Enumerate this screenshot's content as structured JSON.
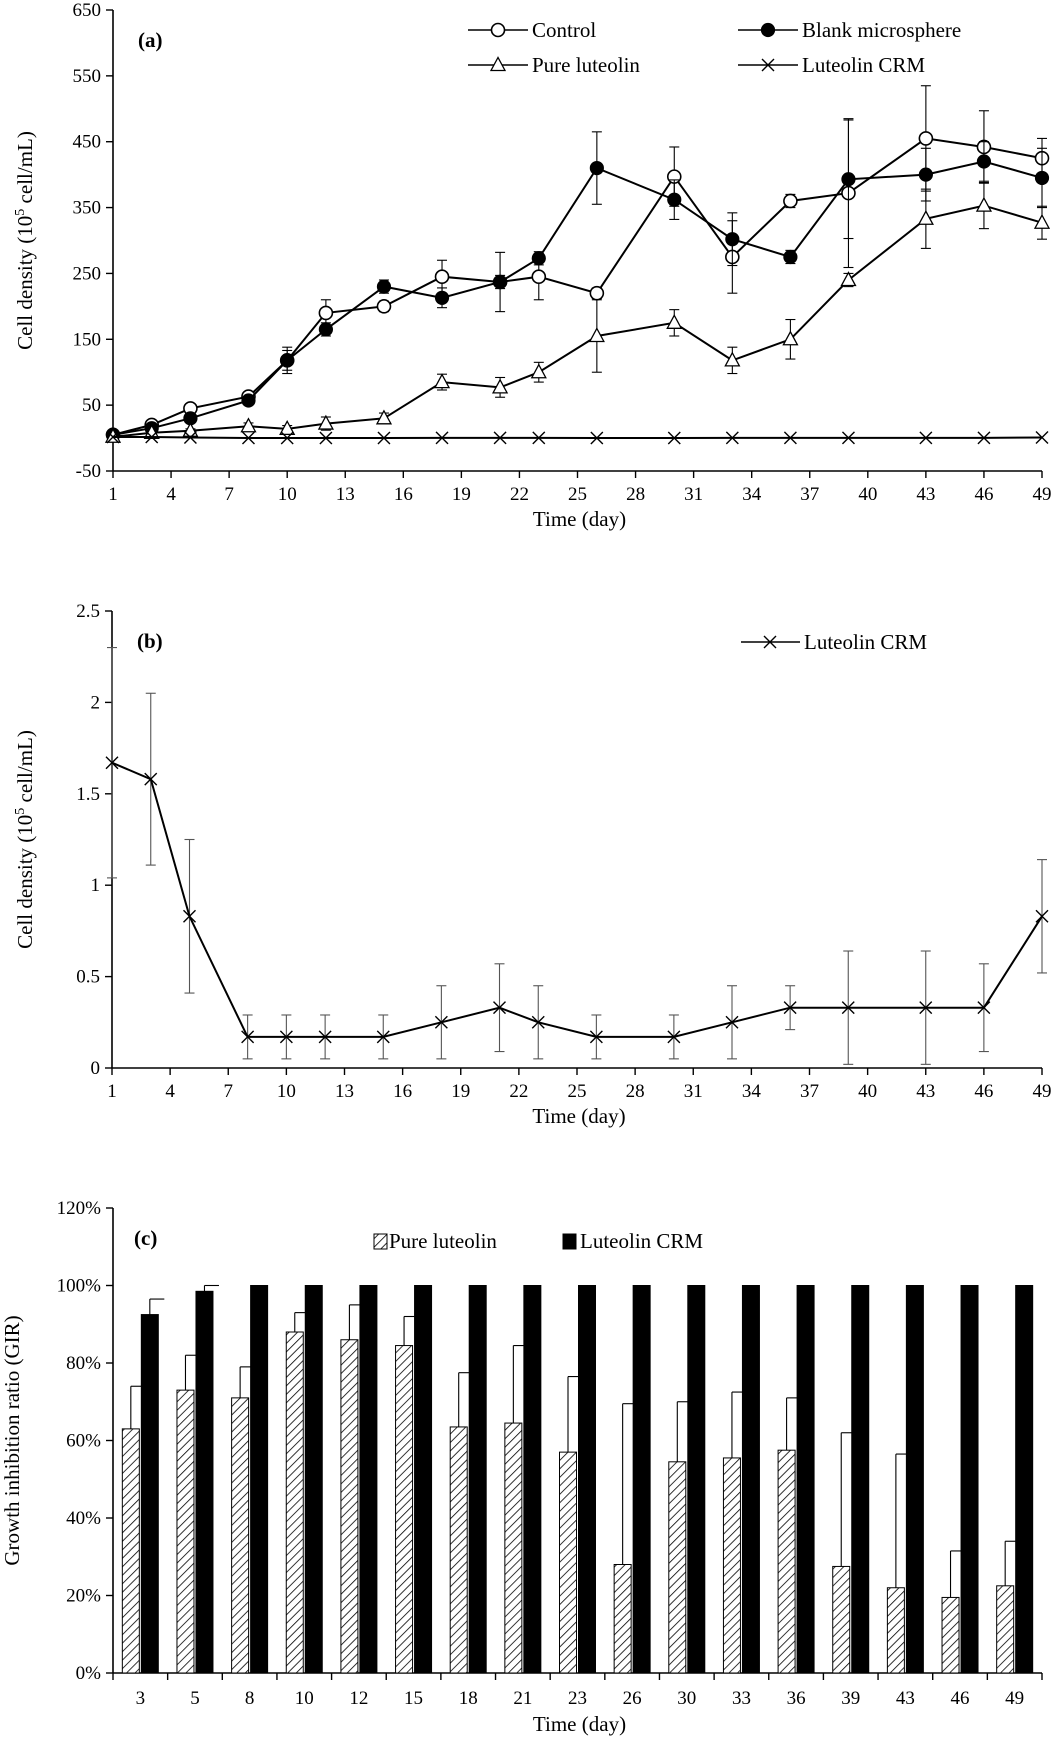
{
  "figure": {
    "panels": [
      {
        "letter": "(a)"
      },
      {
        "letter": "(b)"
      },
      {
        "letter": "(c)"
      }
    ]
  },
  "chart_data": [
    {
      "panel": "(a)",
      "type": "line",
      "xlabel": "Time (day)",
      "ylabel": "Cell density (10",
      "ylabel_sup": "5",
      "ylabel_rest": " cell/mL)",
      "ylim": [
        -50,
        650
      ],
      "yticks": [
        -50,
        50,
        150,
        250,
        350,
        450,
        550,
        650
      ],
      "xlim": [
        1,
        49
      ],
      "xticks": [
        1,
        4,
        7,
        10,
        13,
        16,
        19,
        22,
        25,
        28,
        31,
        34,
        37,
        40,
        43,
        46,
        49
      ],
      "grid": false,
      "legend_position": "top-right",
      "series": [
        {
          "name": "Control",
          "marker": "open-circle",
          "x": [
            1,
            3,
            5,
            8,
            10,
            12,
            15,
            18,
            21,
            23,
            26,
            30,
            33,
            36,
            39,
            43,
            46,
            49
          ],
          "y": [
            5,
            20,
            45,
            63,
            118,
            190,
            200,
            245,
            237,
            245,
            220,
            397,
            275,
            360,
            372,
            455,
            442,
            425
          ],
          "err": [
            3,
            5,
            7,
            6,
            20,
            20,
            8,
            25,
            45,
            35,
            8,
            45,
            55,
            10,
            113,
            80,
            55,
            30
          ]
        },
        {
          "name": "Blank microsphere",
          "marker": "filled-circle",
          "x": [
            1,
            3,
            5,
            8,
            10,
            12,
            15,
            18,
            21,
            23,
            26,
            30,
            33,
            36,
            39,
            43,
            46,
            49
          ],
          "y": [
            5,
            15,
            30,
            57,
            118,
            165,
            230,
            213,
            237,
            273,
            410,
            362,
            302,
            275,
            393,
            400,
            420,
            395
          ],
          "err": [
            2,
            3,
            5,
            5,
            15,
            10,
            10,
            15,
            10,
            10,
            55,
            30,
            40,
            10,
            90,
            40,
            30,
            45
          ]
        },
        {
          "name": "Pure luteolin",
          "marker": "open-triangle",
          "x": [
            1,
            3,
            5,
            8,
            10,
            12,
            15,
            18,
            21,
            23,
            26,
            30,
            33,
            36,
            39,
            43,
            46,
            49
          ],
          "y": [
            2,
            8,
            11,
            18,
            14,
            22,
            30,
            85,
            77,
            100,
            155,
            175,
            118,
            150,
            240,
            333,
            353,
            327
          ],
          "err": [
            2,
            3,
            3,
            5,
            5,
            10,
            8,
            12,
            15,
            15,
            55,
            20,
            20,
            30,
            10,
            45,
            35,
            25
          ]
        },
        {
          "name": "Luteolin CRM",
          "marker": "cross",
          "x": [
            1,
            3,
            5,
            8,
            10,
            12,
            15,
            18,
            21,
            23,
            26,
            30,
            33,
            36,
            39,
            43,
            46,
            49
          ],
          "y": [
            1.67,
            1.58,
            0.83,
            0.17,
            0.17,
            0.17,
            0.17,
            0.25,
            0.33,
            0.25,
            0.17,
            0.17,
            0.25,
            0.33,
            0.33,
            0.33,
            0.33,
            0.83
          ],
          "err": []
        }
      ]
    },
    {
      "panel": "(b)",
      "type": "line",
      "xlabel": "Time (day)",
      "ylabel": "Cell density (10",
      "ylabel_sup": "5",
      "ylabel_rest": " cell/mL)",
      "ylim": [
        0,
        2.5
      ],
      "yticks": [
        0,
        0.5,
        1,
        1.5,
        2,
        2.5
      ],
      "ytick_labels": [
        "0",
        "0.5",
        "1",
        "1.5",
        "2",
        "2.5"
      ],
      "xlim": [
        1,
        49
      ],
      "xticks": [
        1,
        4,
        7,
        10,
        13,
        16,
        19,
        22,
        25,
        28,
        31,
        34,
        37,
        40,
        43,
        46,
        49
      ],
      "grid": false,
      "legend_position": "top-right",
      "series": [
        {
          "name": "Luteolin CRM",
          "marker": "cross",
          "x": [
            1,
            3,
            5,
            8,
            10,
            12,
            15,
            18,
            21,
            23,
            26,
            30,
            33,
            36,
            39,
            43,
            46,
            49
          ],
          "y": [
            1.67,
            1.58,
            0.83,
            0.17,
            0.17,
            0.17,
            0.17,
            0.25,
            0.33,
            0.25,
            0.17,
            0.17,
            0.25,
            0.33,
            0.33,
            0.33,
            0.33,
            0.83
          ],
          "err": [
            0.63,
            0.47,
            0.42,
            0.12,
            0.12,
            0.12,
            0.12,
            0.2,
            0.24,
            0.2,
            0.12,
            0.12,
            0.2,
            0.12,
            0.31,
            0.31,
            0.24,
            0.31
          ]
        }
      ]
    },
    {
      "panel": "(c)",
      "type": "bar",
      "xlabel": "Time (day)",
      "ylabel": "Growth inhibition ratio (GIR)",
      "ylim": [
        0,
        1.2
      ],
      "yticks": [
        0,
        0.2,
        0.4,
        0.6,
        0.8,
        1.0,
        1.2
      ],
      "ytick_labels": [
        "0%",
        "20%",
        "40%",
        "60%",
        "80%",
        "100%",
        "120%"
      ],
      "categories": [
        "3",
        "5",
        "8",
        "10",
        "12",
        "15",
        "18",
        "21",
        "23",
        "26",
        "30",
        "33",
        "36",
        "39",
        "43",
        "46",
        "49"
      ],
      "grid": false,
      "legend_position": "top-center",
      "series": [
        {
          "name": "Pure luteolin",
          "fill": "hatched",
          "values": [
            0.63,
            0.73,
            0.71,
            0.88,
            0.86,
            0.845,
            0.635,
            0.645,
            0.57,
            0.28,
            0.545,
            0.555,
            0.575,
            0.275,
            0.22,
            0.195,
            0.225
          ],
          "err": [
            0.11,
            0.09,
            0.08,
            0.05,
            0.09,
            0.075,
            0.14,
            0.2,
            0.195,
            0.415,
            0.155,
            0.17,
            0.135,
            0.345,
            0.345,
            0.12,
            0.115
          ]
        },
        {
          "name": "Luteolin CRM",
          "fill": "solid",
          "values": [
            0.925,
            0.985,
            1.0,
            1.0,
            1.0,
            1.0,
            1.0,
            1.0,
            1.0,
            1.0,
            1.0,
            1.0,
            1.0,
            1.0,
            1.0,
            1.0,
            1.0
          ],
          "err": [
            0.04,
            0.015,
            0,
            0,
            0,
            0,
            0,
            0,
            0,
            0,
            0,
            0,
            0,
            0,
            0,
            0,
            0
          ]
        }
      ]
    }
  ]
}
